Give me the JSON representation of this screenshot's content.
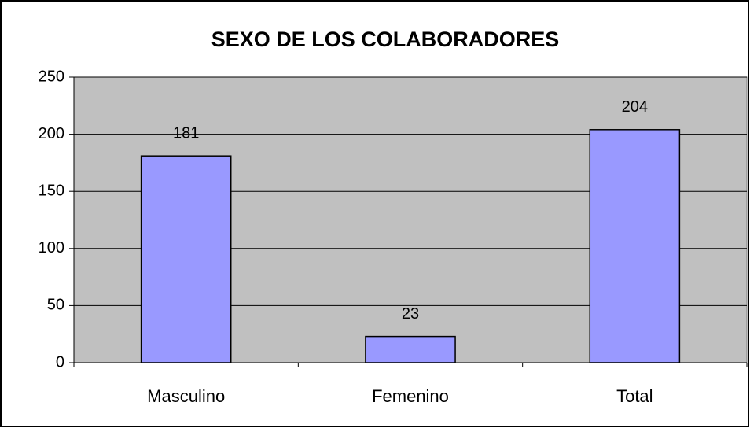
{
  "chart_data": {
    "type": "bar",
    "title": "SEXO DE LOS COLABORADORES",
    "categories": [
      "Masculino",
      "Femenino",
      "Total"
    ],
    "values": [
      181,
      23,
      204
    ],
    "color": "#9999ff",
    "plot_background": "#c0c0c0",
    "ylim": [
      0,
      250
    ],
    "yticks": [
      0,
      50,
      100,
      150,
      200,
      250
    ],
    "grid": true
  }
}
